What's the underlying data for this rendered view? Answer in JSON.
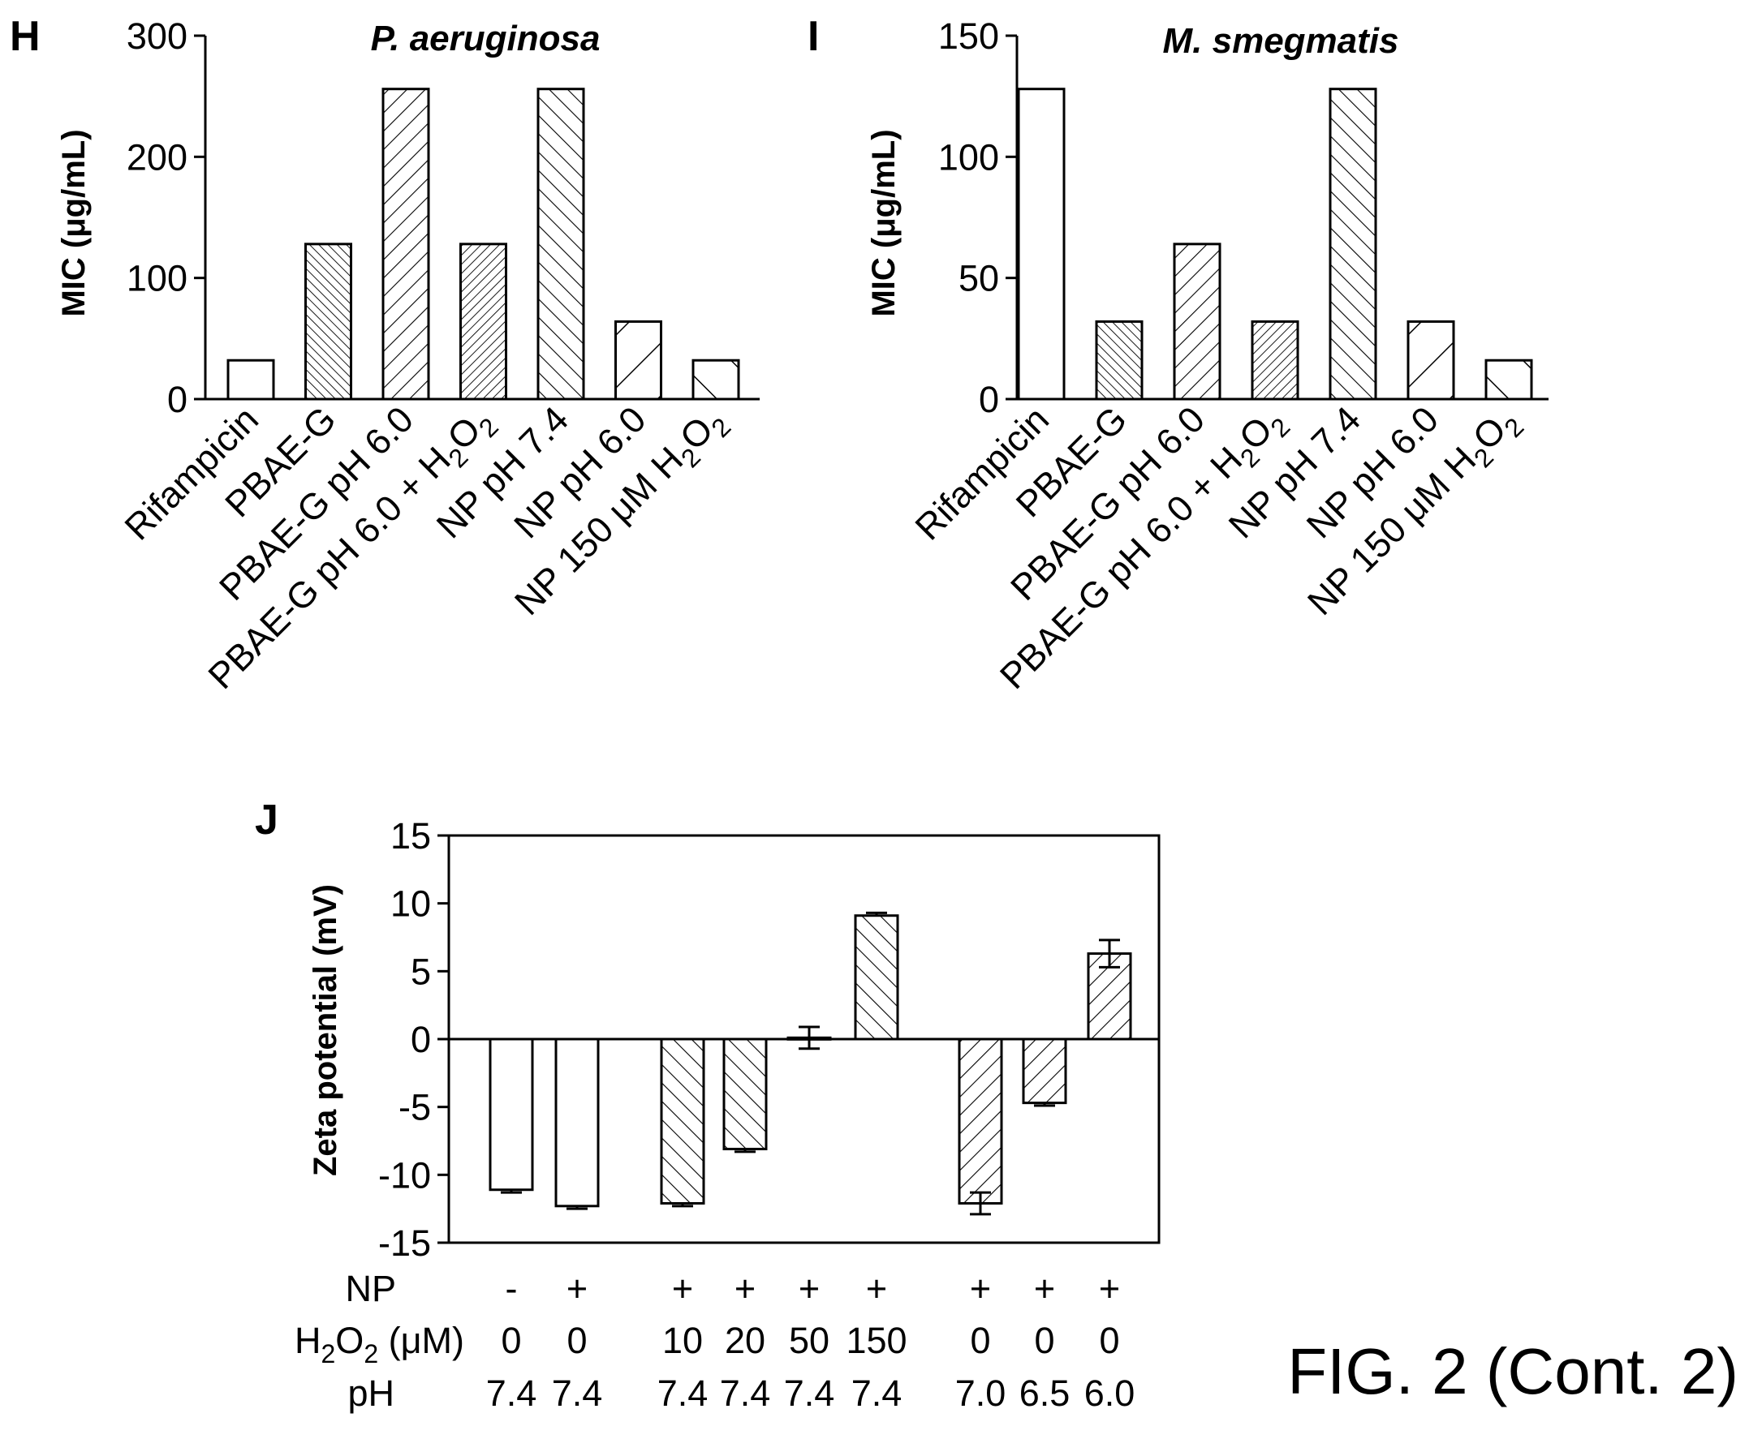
{
  "figure_label": "FIG. 2 (Cont. 2)",
  "chart_data": [
    {
      "panel": "H",
      "type": "bar",
      "title": "P. aeruginosa",
      "ylabel": "MIC (μg/mL)",
      "ylim": [
        0,
        300
      ],
      "yticks": [
        "0",
        "100",
        "200",
        "300"
      ],
      "categories": [
        "Rifampicin",
        "PBAE-G",
        "PBAE-G pH 6.0",
        "PBAE-G pH 6.0 + H2O2",
        "NP pH 7.4",
        "NP pH 6.0",
        "NP 150 μM H2O2"
      ],
      "values": [
        32,
        128,
        256,
        128,
        256,
        64,
        32
      ],
      "patterns": [
        "none",
        "dense-back",
        "fwd",
        "dense-fwd",
        "back",
        "wide-fwd",
        "wide-back"
      ]
    },
    {
      "panel": "I",
      "type": "bar",
      "title": "M. smegmatis",
      "ylabel": "MIC (μg/mL)",
      "ylim": [
        0,
        150
      ],
      "yticks": [
        "0",
        "50",
        "100",
        "150"
      ],
      "categories": [
        "Rifampicin",
        "PBAE-G",
        "PBAE-G pH 6.0",
        "PBAE-G pH 6.0 + H2O2",
        "NP pH 7.4",
        "NP pH 6.0",
        "NP 150 μM H2O2"
      ],
      "values": [
        128,
        32,
        64,
        32,
        128,
        32,
        16
      ],
      "patterns": [
        "none",
        "dense-back",
        "fwd",
        "dense-fwd",
        "back",
        "wide-fwd",
        "wide-back"
      ]
    },
    {
      "panel": "J",
      "type": "bar",
      "ylabel": "Zeta potential (mV)",
      "ylim": [
        -15,
        15
      ],
      "yticks": [
        "-15",
        "-10",
        "-5",
        "0",
        "5",
        "10",
        "15"
      ],
      "bars": [
        {
          "value": -11.1,
          "error": 0.2,
          "pattern": "none",
          "np": "-",
          "h2o2": "0",
          "ph": "7.4"
        },
        {
          "value": -12.3,
          "error": 0.2,
          "pattern": "none",
          "np": "+",
          "h2o2": "0",
          "ph": "7.4"
        },
        {
          "value": -12.1,
          "error": 0.2,
          "pattern": "back",
          "np": "+",
          "h2o2": "10",
          "ph": "7.4"
        },
        {
          "value": -8.1,
          "error": 0.2,
          "pattern": "back",
          "np": "+",
          "h2o2": "20",
          "ph": "7.4"
        },
        {
          "value": 0.1,
          "error": 0.8,
          "pattern": "back",
          "np": "+",
          "h2o2": "50",
          "ph": "7.4"
        },
        {
          "value": 9.1,
          "error": 0.2,
          "pattern": "back",
          "np": "+",
          "h2o2": "150",
          "ph": "7.4"
        },
        {
          "value": -12.1,
          "error": 0.8,
          "pattern": "fwd",
          "np": "+",
          "h2o2": "0",
          "ph": "7.0"
        },
        {
          "value": -4.7,
          "error": 0.2,
          "pattern": "fwd",
          "np": "+",
          "h2o2": "0",
          "ph": "6.5"
        },
        {
          "value": 6.3,
          "error": 1.0,
          "pattern": "fwd",
          "np": "+",
          "h2o2": "0",
          "ph": "6.0"
        }
      ],
      "row_labels": {
        "np": "NP",
        "h2o2_main": "H",
        "h2o2_sub": "2",
        "h2o2_mid": "O",
        "h2o2_sub2": "2",
        "h2o2_unit": " (μM)",
        "ph": "pH"
      }
    }
  ]
}
